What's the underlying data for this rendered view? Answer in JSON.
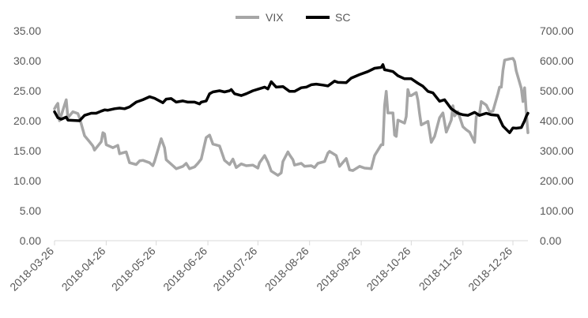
{
  "chart_data": {
    "type": "line",
    "legend_position": "top-center",
    "grid": false,
    "x_axis": {
      "type": "date",
      "range": [
        "2018-03-26",
        "2019-01-04"
      ],
      "tick_labels": [
        "2018-03-26",
        "2018-04-26",
        "2018-05-26",
        "2018-06-26",
        "2018-07-26",
        "2018-08-26",
        "2018-09-26",
        "2018-10-26",
        "2018-11-26",
        "2018-12-26"
      ]
    },
    "y_left": {
      "range": [
        0,
        35
      ],
      "tick_labels": [
        "0.00",
        "5.00",
        "10.00",
        "15.00",
        "20.00",
        "25.00",
        "30.00",
        "35.00"
      ]
    },
    "y_right": {
      "range": [
        0,
        700
      ],
      "tick_labels": [
        "0.00",
        "100.00",
        "200.00",
        "300.00",
        "400.00",
        "500.00",
        "600.00",
        "700.00"
      ]
    },
    "series": [
      {
        "name": "VIX",
        "axis": "left",
        "color": "#a6a6a6",
        "points": [
          [
            "2018-03-26",
            22.0
          ],
          [
            "2018-03-27",
            22.5
          ],
          [
            "2018-03-28",
            22.9
          ],
          [
            "2018-03-29",
            20.0
          ],
          [
            "2018-04-02",
            23.5
          ],
          [
            "2018-04-03",
            20.5
          ],
          [
            "2018-04-06",
            21.5
          ],
          [
            "2018-04-09",
            21.2
          ],
          [
            "2018-04-10",
            20.5
          ],
          [
            "2018-04-13",
            17.5
          ],
          [
            "2018-04-16",
            16.5
          ],
          [
            "2018-04-18",
            15.8
          ],
          [
            "2018-04-19",
            15.1
          ],
          [
            "2018-04-23",
            16.5
          ],
          [
            "2018-04-24",
            18.0
          ],
          [
            "2018-04-25",
            17.8
          ],
          [
            "2018-04-26",
            16.0
          ],
          [
            "2018-04-30",
            15.5
          ],
          [
            "2018-05-03",
            15.9
          ],
          [
            "2018-05-04",
            14.5
          ],
          [
            "2018-05-08",
            14.8
          ],
          [
            "2018-05-10",
            13.0
          ],
          [
            "2018-05-14",
            12.7
          ],
          [
            "2018-05-16",
            13.3
          ],
          [
            "2018-05-18",
            13.4
          ],
          [
            "2018-05-22",
            13.0
          ],
          [
            "2018-05-24",
            12.5
          ],
          [
            "2018-05-25",
            13.2
          ],
          [
            "2018-05-29",
            17.0
          ],
          [
            "2018-05-31",
            15.5
          ],
          [
            "2018-06-01",
            13.5
          ],
          [
            "2018-06-05",
            12.5
          ],
          [
            "2018-06-07",
            12.0
          ],
          [
            "2018-06-11",
            12.4
          ],
          [
            "2018-06-13",
            12.9
          ],
          [
            "2018-06-15",
            12.0
          ],
          [
            "2018-06-18",
            12.3
          ],
          [
            "2018-06-20",
            12.9
          ],
          [
            "2018-06-22",
            13.6
          ],
          [
            "2018-06-25",
            17.2
          ],
          [
            "2018-06-27",
            17.6
          ],
          [
            "2018-06-29",
            16.1
          ],
          [
            "2018-07-03",
            15.8
          ],
          [
            "2018-07-06",
            13.4
          ],
          [
            "2018-07-09",
            12.7
          ],
          [
            "2018-07-11",
            13.6
          ],
          [
            "2018-07-13",
            12.2
          ],
          [
            "2018-07-16",
            12.8
          ],
          [
            "2018-07-19",
            12.5
          ],
          [
            "2018-07-23",
            12.6
          ],
          [
            "2018-07-26",
            12.1
          ],
          [
            "2018-07-27",
            13.0
          ],
          [
            "2018-07-30",
            14.2
          ],
          [
            "2018-08-01",
            13.1
          ],
          [
            "2018-08-03",
            11.6
          ],
          [
            "2018-08-07",
            10.9
          ],
          [
            "2018-08-09",
            11.3
          ],
          [
            "2018-08-10",
            13.2
          ],
          [
            "2018-08-13",
            14.8
          ],
          [
            "2018-08-14",
            14.3
          ],
          [
            "2018-08-16",
            13.5
          ],
          [
            "2018-08-17",
            12.6
          ],
          [
            "2018-08-21",
            12.9
          ],
          [
            "2018-08-23",
            12.4
          ],
          [
            "2018-08-27",
            12.5
          ],
          [
            "2018-08-29",
            12.2
          ],
          [
            "2018-08-31",
            12.9
          ],
          [
            "2018-09-04",
            13.2
          ],
          [
            "2018-09-06",
            14.6
          ],
          [
            "2018-09-07",
            14.9
          ],
          [
            "2018-09-11",
            14.2
          ],
          [
            "2018-09-13",
            12.4
          ],
          [
            "2018-09-17",
            13.7
          ],
          [
            "2018-09-19",
            11.8
          ],
          [
            "2018-09-21",
            11.7
          ],
          [
            "2018-09-25",
            12.4
          ],
          [
            "2018-09-28",
            12.1
          ],
          [
            "2018-10-02",
            12.0
          ],
          [
            "2018-10-04",
            14.2
          ],
          [
            "2018-10-08",
            16.0
          ],
          [
            "2018-10-09",
            16.0
          ],
          [
            "2018-10-10",
            22.5
          ],
          [
            "2018-10-11",
            24.9
          ],
          [
            "2018-10-12",
            21.3
          ],
          [
            "2018-10-15",
            21.3
          ],
          [
            "2018-10-16",
            17.6
          ],
          [
            "2018-10-17",
            17.4
          ],
          [
            "2018-10-18",
            20.1
          ],
          [
            "2018-10-22",
            19.6
          ],
          [
            "2018-10-23",
            20.7
          ],
          [
            "2018-10-24",
            25.2
          ],
          [
            "2018-10-25",
            24.2
          ],
          [
            "2018-10-26",
            24.2
          ],
          [
            "2018-10-29",
            24.7
          ],
          [
            "2018-10-30",
            23.4
          ],
          [
            "2018-10-31",
            21.2
          ],
          [
            "2018-11-01",
            19.3
          ],
          [
            "2018-11-05",
            19.9
          ],
          [
            "2018-11-07",
            16.4
          ],
          [
            "2018-11-09",
            17.4
          ],
          [
            "2018-11-12",
            20.5
          ],
          [
            "2018-11-14",
            21.3
          ],
          [
            "2018-11-16",
            18.1
          ],
          [
            "2018-11-19",
            20.1
          ],
          [
            "2018-11-20",
            22.5
          ],
          [
            "2018-11-21",
            20.8
          ],
          [
            "2018-11-23",
            21.5
          ],
          [
            "2018-11-26",
            19.0
          ],
          [
            "2018-11-28",
            18.5
          ],
          [
            "2018-11-30",
            18.1
          ],
          [
            "2018-12-03",
            16.4
          ],
          [
            "2018-12-04",
            20.7
          ],
          [
            "2018-12-06",
            21.2
          ],
          [
            "2018-12-07",
            23.2
          ],
          [
            "2018-12-10",
            22.6
          ],
          [
            "2018-12-12",
            21.5
          ],
          [
            "2018-12-14",
            21.6
          ],
          [
            "2018-12-17",
            24.5
          ],
          [
            "2018-12-18",
            25.6
          ],
          [
            "2018-12-19",
            25.6
          ],
          [
            "2018-12-20",
            28.4
          ],
          [
            "2018-12-21",
            30.1
          ],
          [
            "2018-12-24",
            30.3
          ],
          [
            "2018-12-26",
            30.4
          ],
          [
            "2018-12-27",
            29.9
          ],
          [
            "2018-12-28",
            28.3
          ],
          [
            "2018-12-31",
            25.4
          ],
          [
            "2019-01-01",
            23.2
          ],
          [
            "2019-01-02",
            25.5
          ],
          [
            "2019-01-03",
            21.4
          ],
          [
            "2019-01-04",
            18.0
          ]
        ]
      },
      {
        "name": "SC",
        "axis": "right",
        "color": "#000000",
        "points": [
          [
            "2018-03-26",
            430
          ],
          [
            "2018-03-28",
            410
          ],
          [
            "2018-03-30",
            405
          ],
          [
            "2018-04-02",
            412
          ],
          [
            "2018-04-03",
            402
          ],
          [
            "2018-04-10",
            400
          ],
          [
            "2018-04-13",
            418
          ],
          [
            "2018-04-17",
            425
          ],
          [
            "2018-04-20",
            425
          ],
          [
            "2018-04-23",
            432
          ],
          [
            "2018-04-25",
            436
          ],
          [
            "2018-04-27",
            435
          ],
          [
            "2018-05-01",
            440
          ],
          [
            "2018-05-04",
            442
          ],
          [
            "2018-05-07",
            440
          ],
          [
            "2018-05-10",
            446
          ],
          [
            "2018-05-14",
            462
          ],
          [
            "2018-05-16",
            466
          ],
          [
            "2018-05-18",
            470
          ],
          [
            "2018-05-22",
            480
          ],
          [
            "2018-05-25",
            475
          ],
          [
            "2018-05-30",
            460
          ],
          [
            "2018-06-01",
            472
          ],
          [
            "2018-06-04",
            474
          ],
          [
            "2018-06-07",
            462
          ],
          [
            "2018-06-11",
            466
          ],
          [
            "2018-06-14",
            462
          ],
          [
            "2018-06-18",
            462
          ],
          [
            "2018-06-21",
            456
          ],
          [
            "2018-06-22",
            462
          ],
          [
            "2018-06-25",
            466
          ],
          [
            "2018-06-27",
            490
          ],
          [
            "2018-06-29",
            496
          ],
          [
            "2018-07-03",
            500
          ],
          [
            "2018-07-06",
            496
          ],
          [
            "2018-07-09",
            500
          ],
          [
            "2018-07-10",
            504
          ],
          [
            "2018-07-12",
            490
          ],
          [
            "2018-07-16",
            484
          ],
          [
            "2018-07-19",
            490
          ],
          [
            "2018-07-23",
            500
          ],
          [
            "2018-07-26",
            505
          ],
          [
            "2018-07-30",
            512
          ],
          [
            "2018-08-01",
            506
          ],
          [
            "2018-08-03",
            530
          ],
          [
            "2018-08-06",
            512
          ],
          [
            "2018-08-10",
            514
          ],
          [
            "2018-08-14",
            498
          ],
          [
            "2018-08-17",
            498
          ],
          [
            "2018-08-21",
            510
          ],
          [
            "2018-08-24",
            512
          ],
          [
            "2018-08-27",
            520
          ],
          [
            "2018-08-30",
            522
          ],
          [
            "2018-09-03",
            519
          ],
          [
            "2018-09-06",
            516
          ],
          [
            "2018-09-10",
            532
          ],
          [
            "2018-09-12",
            528
          ],
          [
            "2018-09-17",
            527
          ],
          [
            "2018-09-20",
            542
          ],
          [
            "2018-09-25",
            554
          ],
          [
            "2018-09-30",
            564
          ],
          [
            "2018-10-04",
            575
          ],
          [
            "2018-10-08",
            578
          ],
          [
            "2018-10-09",
            587
          ],
          [
            "2018-10-10",
            570
          ],
          [
            "2018-10-12",
            568
          ],
          [
            "2018-10-15",
            564
          ],
          [
            "2018-10-18",
            550
          ],
          [
            "2018-10-22",
            540
          ],
          [
            "2018-10-26",
            540
          ],
          [
            "2018-10-30",
            525
          ],
          [
            "2018-11-02",
            515
          ],
          [
            "2018-11-05",
            498
          ],
          [
            "2018-11-08",
            493
          ],
          [
            "2018-11-12",
            465
          ],
          [
            "2018-11-15",
            470
          ],
          [
            "2018-11-19",
            440
          ],
          [
            "2018-11-23",
            425
          ],
          [
            "2018-11-26",
            420
          ],
          [
            "2018-11-29",
            418
          ],
          [
            "2018-12-03",
            428
          ],
          [
            "2018-12-06",
            418
          ],
          [
            "2018-12-10",
            425
          ],
          [
            "2018-12-13",
            420
          ],
          [
            "2018-12-17",
            418
          ],
          [
            "2018-12-20",
            382
          ],
          [
            "2018-12-24",
            360
          ],
          [
            "2018-12-26",
            376
          ],
          [
            "2018-12-28",
            375
          ],
          [
            "2018-12-31",
            377
          ],
          [
            "2019-01-02",
            400
          ],
          [
            "2019-01-03",
            415
          ],
          [
            "2019-01-04",
            425
          ]
        ]
      }
    ]
  }
}
